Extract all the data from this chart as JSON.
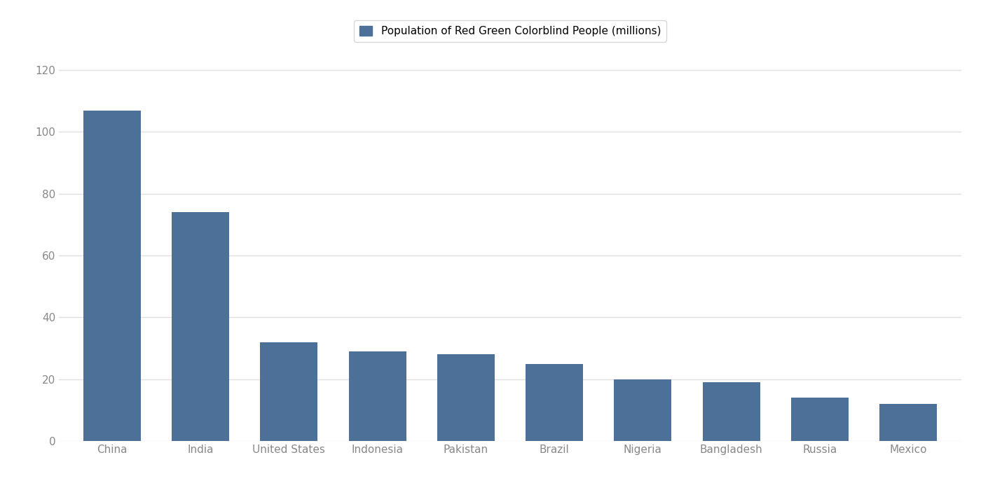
{
  "countries": [
    "China",
    "India",
    "United States",
    "Indonesia",
    "Pakistan",
    "Brazil",
    "Nigeria",
    "Bangladesh",
    "Russia",
    "Mexico"
  ],
  "values": [
    107,
    74,
    32,
    29,
    28,
    25,
    20,
    19,
    14,
    12
  ],
  "bar_color": "#4d7098",
  "legend_label": "Population of Red Green Colorblind People (millions)",
  "background_color": "#ffffff",
  "ylim": [
    0,
    130
  ],
  "yticks": [
    0,
    20,
    40,
    60,
    80,
    100,
    120
  ],
  "grid_color": "#e0e0e0",
  "bar_width": 0.65,
  "tick_label_color": "#888888",
  "legend_fontsize": 11,
  "tick_fontsize": 11
}
